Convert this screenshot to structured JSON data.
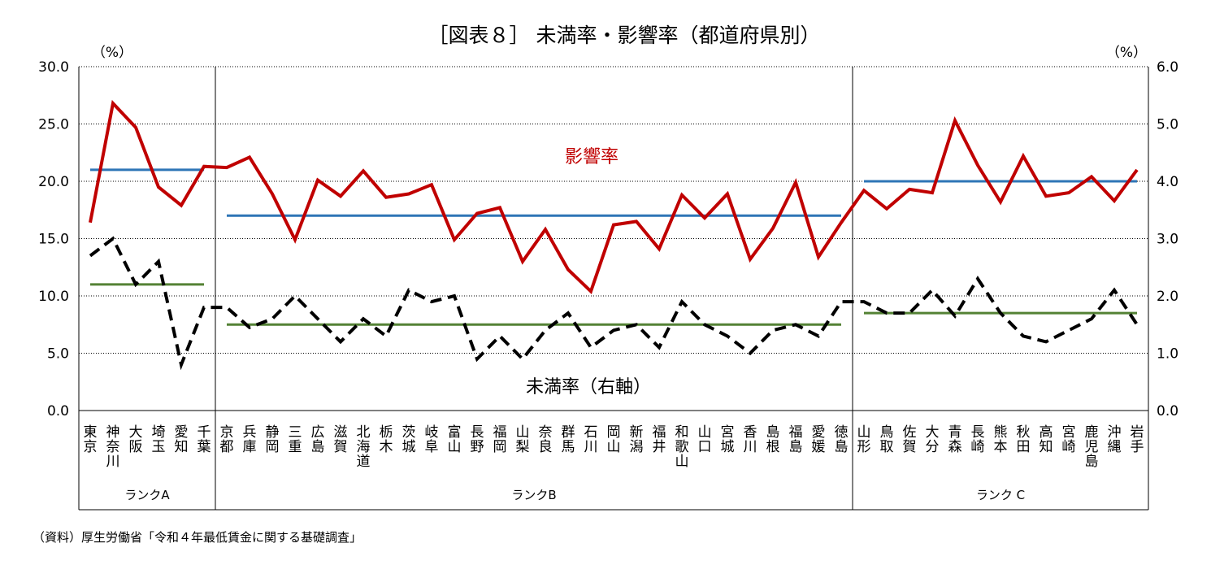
{
  "chart_data": {
    "type": "line",
    "title": "［図表８］ 未満率・影響率（都道府県別）",
    "source": "（資料）厚生労働省「令和４年最低賃金に関する基礎調査」",
    "y_left": {
      "unit": "（%）",
      "min": 0,
      "max": 30,
      "step": 5,
      "ticks": [
        "0.0",
        "5.0",
        "10.0",
        "15.0",
        "20.0",
        "25.0",
        "30.0"
      ]
    },
    "y_right": {
      "unit": "（%）",
      "min": 0,
      "max": 6,
      "step": 1,
      "ticks": [
        "0.0",
        "1.0",
        "2.0",
        "3.0",
        "4.0",
        "5.0",
        "6.0"
      ]
    },
    "grid": true,
    "categories": [
      "東京",
      "神奈川",
      "大阪",
      "埼玉",
      "愛知",
      "千葉",
      "京都",
      "兵庫",
      "静岡",
      "三重",
      "広島",
      "滋賀",
      "北海道",
      "栃木",
      "茨城",
      "岐阜",
      "富山",
      "長野",
      "福岡",
      "山梨",
      "奈良",
      "群馬",
      "石川",
      "岡山",
      "新潟",
      "福井",
      "和歌山",
      "山口",
      "宮城",
      "香川",
      "島根",
      "福島",
      "愛媛",
      "徳島",
      "山形",
      "鳥取",
      "佐賀",
      "大分",
      "青森",
      "長崎",
      "熊本",
      "秋田",
      "高知",
      "宮崎",
      "鹿児島",
      "沖縄",
      "岩手"
    ],
    "ranks": [
      {
        "label": "ランクA",
        "start": 0,
        "end": 5,
        "eikyo_avg": 21.0,
        "miman_avg": 2.2
      },
      {
        "label": "ランクB",
        "start": 6,
        "end": 33,
        "eikyo_avg": 17.0,
        "miman_avg": 1.5
      },
      {
        "label": "ランク C",
        "start": 34,
        "end": 46,
        "eikyo_avg": 20.0,
        "miman_avg": 1.7
      }
    ],
    "series": [
      {
        "name": "影響率",
        "axis": "left",
        "color": "#c00000",
        "dash": false,
        "values": [
          16.4,
          26.8,
          24.7,
          19.5,
          17.9,
          21.3,
          21.2,
          22.1,
          18.9,
          14.9,
          20.1,
          18.7,
          20.9,
          18.6,
          18.9,
          19.7,
          14.9,
          17.2,
          17.7,
          13.0,
          15.8,
          12.3,
          10.4,
          16.2,
          16.5,
          14.1,
          18.8,
          16.8,
          18.9,
          13.2,
          15.9,
          19.9,
          13.4,
          16.4,
          19.2,
          17.6,
          19.3,
          19.0,
          25.3,
          21.4,
          18.2,
          22.2,
          18.7,
          19.0,
          20.4,
          18.3,
          21.0
        ]
      },
      {
        "name": "未満率（右軸）",
        "axis": "right",
        "color": "#000000",
        "dash": true,
        "values": [
          2.7,
          3.0,
          2.2,
          2.6,
          0.8,
          1.8,
          1.8,
          1.45,
          1.6,
          2.0,
          1.6,
          1.2,
          1.6,
          1.3,
          2.1,
          1.9,
          2.0,
          0.9,
          1.3,
          0.9,
          1.4,
          1.7,
          1.1,
          1.4,
          1.5,
          1.1,
          1.9,
          1.5,
          1.3,
          1.0,
          1.4,
          1.5,
          1.3,
          1.9,
          1.9,
          1.7,
          1.7,
          2.1,
          1.65,
          2.3,
          1.7,
          1.3,
          1.2,
          1.4,
          1.6,
          2.1,
          1.5
        ]
      }
    ],
    "avg_line_colors": {
      "eikyo": "#2e75b6",
      "miman": "#548235"
    },
    "annotations": [
      {
        "text": "影響率",
        "series": 0,
        "color": "#c00000"
      },
      {
        "text": "未満率（右軸）",
        "series": 1,
        "color": "#000000"
      }
    ]
  }
}
